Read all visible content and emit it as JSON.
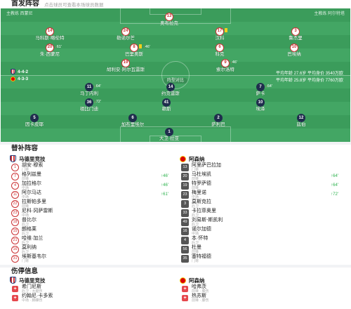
{
  "header": {
    "title": "首发阵容",
    "subtitle": "点击球员可查看本场球员数据"
  },
  "pitch": {
    "home_coach": "主教练 西蒙尼",
    "away_coach": "主教练 阿尔特塔",
    "center_label": "阵型对比",
    "home_formation": "4-4-2",
    "away_formation": "4-3-3",
    "home_stats": "平均年龄 27.6岁   平均身价 3540万欧",
    "away_stats": "平均年龄 25.8岁   平均身价 7760万欧",
    "home_players": [
      {
        "number": "13",
        "name": "奥布拉克"
      },
      {
        "number": "14",
        "name": "马科斯·略伦特"
      },
      {
        "number": "24",
        "name": "勒诺尔芒"
      },
      {
        "number": "17",
        "name": "汉科",
        "card": "yellow"
      },
      {
        "number": "3",
        "name": "鲁杰里"
      },
      {
        "number": "20",
        "name": "朱·西蒙尼",
        "event": "61'"
      },
      {
        "number": "8",
        "name": "巴里奥斯",
        "card": "yellow",
        "event": "46'"
      },
      {
        "number": "6",
        "name": "科克"
      },
      {
        "number": "10",
        "name": "巴埃纳"
      },
      {
        "number": "19",
        "name": "胡利安·阿尔瓦雷斯"
      },
      {
        "number": "9",
        "name": "索尔洛特",
        "event": "46'"
      }
    ],
    "away_players": [
      {
        "number": "11",
        "name": "马丁内利",
        "event": "64'"
      },
      {
        "number": "14",
        "name": "约克雷斯"
      },
      {
        "number": "7",
        "name": "萨卡",
        "event": "64'"
      },
      {
        "number": "36",
        "name": "祖比门迪",
        "event": "72'"
      },
      {
        "number": "41",
        "name": "赖斯"
      },
      {
        "number": "10",
        "name": "埃泽"
      },
      {
        "number": "5",
        "name": "因卡皮耶"
      },
      {
        "number": "6",
        "name": "加布里埃尔"
      },
      {
        "number": "2",
        "name": "萨利巴"
      },
      {
        "number": "12",
        "name": "廷伯"
      },
      {
        "number": "1",
        "name": "大卫·拉亚"
      }
    ]
  },
  "subs": {
    "title": "替补阵容",
    "home_team": "马德里竞技",
    "away_team": "阿森纳",
    "home": [
      {
        "number": "1",
        "name": "胡安·穆索",
        "pos": "门将"
      },
      {
        "number": "7",
        "name": "格列兹曼",
        "pos": "前锋",
        "sub_in": "↑46'"
      },
      {
        "number": "4",
        "name": "加拉格尔",
        "pos": "中场",
        "sub_in": "↑46'"
      },
      {
        "number": "11",
        "name": "阿尔马达",
        "pos": "中场",
        "sub_in": "↑61'"
      },
      {
        "number": "22",
        "name": "拉斯帕多里",
        "pos": "前锋"
      },
      {
        "number": "23",
        "name": "尼科·冈萨雷斯",
        "pos": "中场"
      },
      {
        "number": "18",
        "name": "普比尔",
        "pos": "后卫"
      },
      {
        "number": "15",
        "name": "朗格莱",
        "pos": "后卫"
      },
      {
        "number": "21",
        "name": "哈维·加兰",
        "pos": "后卫"
      },
      {
        "number": "16",
        "name": "莫利纳",
        "pos": "后卫"
      },
      {
        "number": "31",
        "name": "埃斯基韦尔",
        "pos": "门将"
      }
    ],
    "away": [
      {
        "number": "13",
        "name": "阿里萨巴拉加",
        "pos": "门将"
      },
      {
        "number": "20",
        "name": "马杜埃凯",
        "pos": "前锋",
        "sub_in": "↑64'"
      },
      {
        "number": "19",
        "name": "特罗萨德",
        "pos": "前锋",
        "sub_in": "↑64'"
      },
      {
        "number": "23",
        "name": "梅里诺",
        "pos": "中场",
        "sub_in": "↑72'"
      },
      {
        "number": "3",
        "name": "莫斯克拉",
        "pos": "后卫"
      },
      {
        "number": "33",
        "name": "卡拉菲奥里",
        "pos": "后卫"
      },
      {
        "number": "49",
        "name": "刘易斯-斯凯利",
        "pos": "后卫"
      },
      {
        "number": "16",
        "name": "诺尔加德",
        "pos": "中场"
      },
      {
        "number": "4",
        "name": "本·怀特",
        "pos": "后卫"
      },
      {
        "number": "56",
        "name": "杜曼",
        "pos": "前锋"
      },
      {
        "number": "35",
        "name": "塞特福德",
        "pos": "门将"
      }
    ]
  },
  "injuries": {
    "title": "伤停信息",
    "home_team": "马德里竞技",
    "away_team": "阿森纳",
    "home": [
      {
        "name": "希门尼斯",
        "reason": "后卫 · 大腿伤"
      },
      {
        "name": "约翰尼·卡多索",
        "reason": "中场 · 脚踝伤"
      }
    ],
    "away": [
      {
        "name": "哈弗茨",
        "reason": "前锋 · 膝伤"
      },
      {
        "name": "热苏斯",
        "reason": "前锋 · 膝伤"
      }
    ]
  },
  "icons": {
    "injury": "injury-icon",
    "card": "yellow-card-icon",
    "home_crest": "atletico-crest-icon",
    "away_crest": "arsenal-crest-icon"
  },
  "colors": {
    "home": "#cb3234",
    "away": "#1f2d4d",
    "accent_green": "#2bb24c",
    "pitch": "#3f9f5f",
    "card": "#f4cf1a"
  }
}
